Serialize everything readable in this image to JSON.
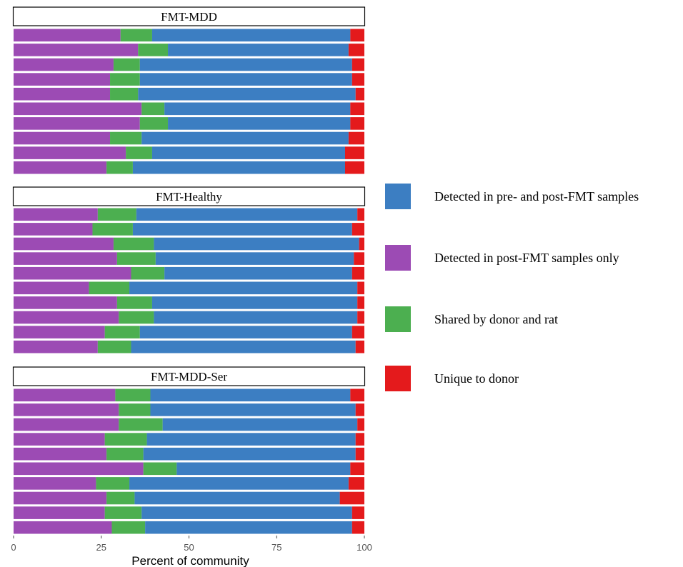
{
  "chart_data": {
    "type": "bar",
    "orientation": "horizontal",
    "stacked": true,
    "xlabel": "Percent of community",
    "xlim": [
      0,
      100
    ],
    "xticks": [
      "0",
      "25",
      "50",
      "75",
      "100"
    ],
    "grid": false,
    "legend_position": "right",
    "series": [
      {
        "key": "post_only",
        "name": "Detected in post-FMT samples only",
        "color": "#9C4BB4"
      },
      {
        "key": "shared",
        "name": "Shared by donor and rat",
        "color": "#4CAF50"
      },
      {
        "key": "pre_post",
        "name": "Detected in pre- and post-FMT samples",
        "color": "#3C7EC2"
      },
      {
        "key": "unique",
        "name": "Unique to donor",
        "color": "#E41A1C"
      }
    ],
    "legend_order": [
      "pre_post",
      "post_only",
      "shared",
      "unique"
    ],
    "panels": [
      {
        "title": "FMT-MDD",
        "rows": [
          {
            "post_only": 30.5,
            "shared": 9.0,
            "pre_post": 56.5,
            "unique": 4.0
          },
          {
            "post_only": 35.5,
            "shared": 8.5,
            "pre_post": 51.5,
            "unique": 4.5
          },
          {
            "post_only": 28.5,
            "shared": 7.5,
            "pre_post": 60.5,
            "unique": 3.5
          },
          {
            "post_only": 27.5,
            "shared": 8.5,
            "pre_post": 60.5,
            "unique": 3.5
          },
          {
            "post_only": 27.5,
            "shared": 8.0,
            "pre_post": 62.0,
            "unique": 2.5
          },
          {
            "post_only": 36.5,
            "shared": 6.5,
            "pre_post": 53.0,
            "unique": 4.0
          },
          {
            "post_only": 36.0,
            "shared": 8.0,
            "pre_post": 52.0,
            "unique": 4.0
          },
          {
            "post_only": 27.5,
            "shared": 9.0,
            "pre_post": 59.0,
            "unique": 4.5
          },
          {
            "post_only": 32.0,
            "shared": 7.5,
            "pre_post": 55.0,
            "unique": 5.5
          },
          {
            "post_only": 26.5,
            "shared": 7.5,
            "pre_post": 60.5,
            "unique": 5.5
          }
        ]
      },
      {
        "title": "FMT-Healthy",
        "rows": [
          {
            "post_only": 24.0,
            "shared": 11.0,
            "pre_post": 63.0,
            "unique": 2.0
          },
          {
            "post_only": 22.5,
            "shared": 11.5,
            "pre_post": 62.5,
            "unique": 3.5
          },
          {
            "post_only": 28.5,
            "shared": 11.5,
            "pre_post": 58.5,
            "unique": 1.5
          },
          {
            "post_only": 29.5,
            "shared": 11.0,
            "pre_post": 56.5,
            "unique": 3.0
          },
          {
            "post_only": 33.5,
            "shared": 9.5,
            "pre_post": 53.5,
            "unique": 3.5
          },
          {
            "post_only": 21.5,
            "shared": 11.5,
            "pre_post": 65.0,
            "unique": 2.0
          },
          {
            "post_only": 29.5,
            "shared": 10.0,
            "pre_post": 58.5,
            "unique": 2.0
          },
          {
            "post_only": 30.0,
            "shared": 10.0,
            "pre_post": 58.0,
            "unique": 2.0
          },
          {
            "post_only": 26.0,
            "shared": 10.0,
            "pre_post": 60.5,
            "unique": 3.5
          },
          {
            "post_only": 24.0,
            "shared": 9.5,
            "pre_post": 64.0,
            "unique": 2.5
          }
        ]
      },
      {
        "title": "FMT-MDD-Ser",
        "rows": [
          {
            "post_only": 29.0,
            "shared": 10.0,
            "pre_post": 57.0,
            "unique": 4.0
          },
          {
            "post_only": 30.0,
            "shared": 9.0,
            "pre_post": 58.5,
            "unique": 2.5
          },
          {
            "post_only": 30.0,
            "shared": 12.5,
            "pre_post": 55.5,
            "unique": 2.0
          },
          {
            "post_only": 26.0,
            "shared": 12.0,
            "pre_post": 59.5,
            "unique": 2.5
          },
          {
            "post_only": 26.5,
            "shared": 10.5,
            "pre_post": 60.5,
            "unique": 2.5
          },
          {
            "post_only": 37.0,
            "shared": 9.5,
            "pre_post": 49.5,
            "unique": 4.0
          },
          {
            "post_only": 23.5,
            "shared": 9.5,
            "pre_post": 62.5,
            "unique": 4.5
          },
          {
            "post_only": 26.5,
            "shared": 8.0,
            "pre_post": 58.5,
            "unique": 7.0
          },
          {
            "post_only": 26.0,
            "shared": 10.5,
            "pre_post": 60.0,
            "unique": 3.5
          },
          {
            "post_only": 28.0,
            "shared": 9.5,
            "pre_post": 59.0,
            "unique": 3.5
          }
        ]
      }
    ]
  }
}
